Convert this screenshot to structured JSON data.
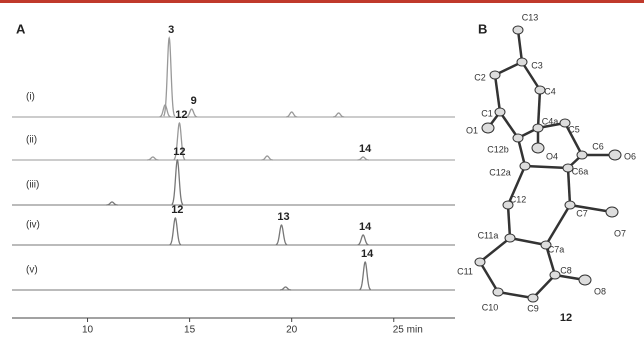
{
  "chart_data": {
    "type": "line",
    "panel_label": "A",
    "xlim": [
      6.3,
      28
    ],
    "xticks": [
      10,
      15,
      20,
      {
        "value": 25,
        "label": "25 min"
      }
    ],
    "series": [
      {
        "name": "(i)",
        "color": "#999999",
        "x": [
          13.8,
          14.0,
          15.1,
          20.0,
          22.3
        ],
        "values": [
          12,
          79,
          8,
          5,
          4
        ],
        "peak_labels": [
          null,
          "3",
          "9",
          null,
          null
        ]
      },
      {
        "name": "(ii)",
        "color": "#999999",
        "x": [
          13.2,
          14.5,
          18.8,
          23.5
        ],
        "values": [
          3,
          37,
          4,
          3
        ],
        "peak_labels": [
          null,
          "12",
          null,
          "14"
        ]
      },
      {
        "name": "(iii)",
        "color": "#777777",
        "x": [
          11.2,
          14.4
        ],
        "values": [
          3,
          45
        ],
        "peak_labels": [
          null,
          "12"
        ]
      },
      {
        "name": "(iv)",
        "color": "#777777",
        "x": [
          14.3,
          19.5,
          23.5
        ],
        "values": [
          27,
          20,
          10
        ],
        "peak_labels": [
          "12",
          "13",
          "14"
        ]
      },
      {
        "name": "(v)",
        "color": "#777777",
        "x": [
          19.7,
          23.6
        ],
        "values": [
          3,
          28
        ],
        "peak_labels": [
          null,
          "14"
        ]
      }
    ]
  },
  "structure": {
    "panel_label": "B",
    "compound_label": "12",
    "atoms": [
      "C13",
      "C3",
      "C2",
      "C4",
      "C1",
      "O1",
      "C4a",
      "C12b",
      "O4",
      "C5",
      "C6",
      "O6",
      "C12a",
      "C6a",
      "C12",
      "C7",
      "O7",
      "C11a",
      "C7a",
      "C11",
      "C8",
      "O8",
      "C10",
      "C9"
    ]
  }
}
